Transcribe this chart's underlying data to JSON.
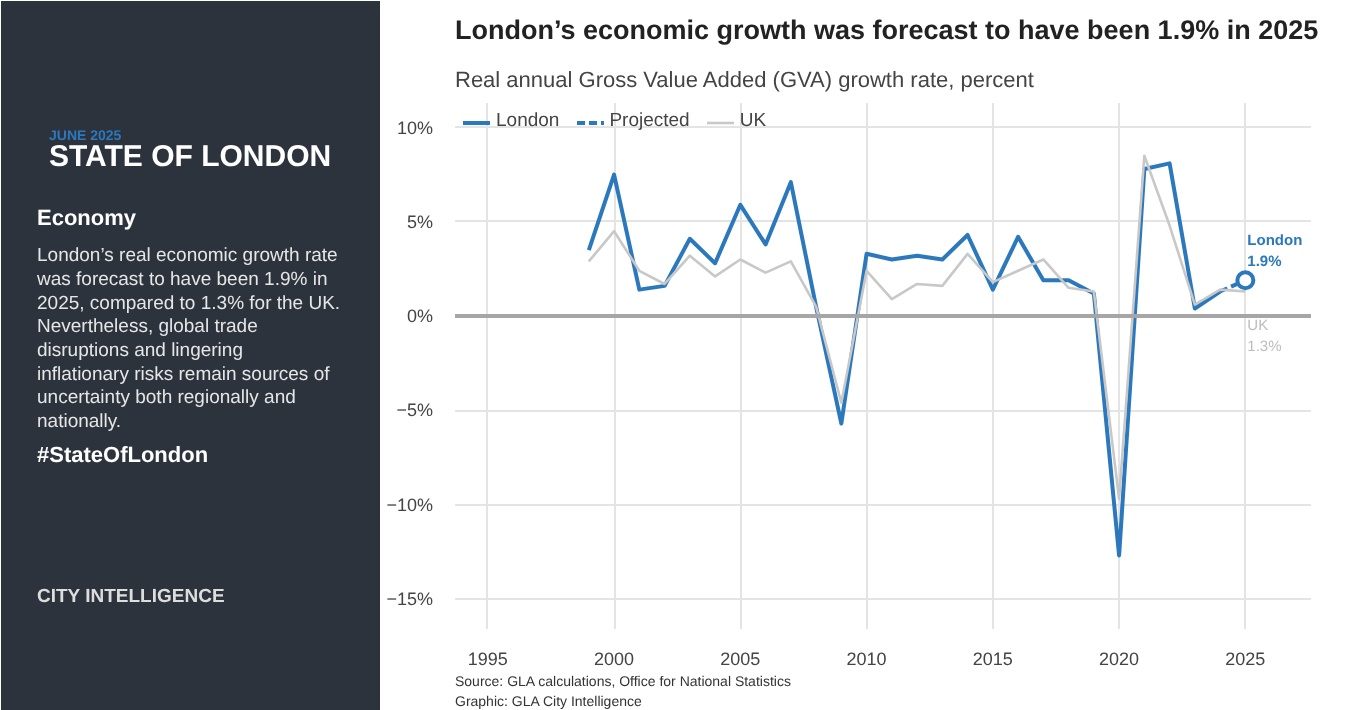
{
  "chart_data": [
    {
      "type": "other",
      "subtitle": "JUNE 2025",
      "title": "STATE OF LONDON",
      "annotations": [
        "Economy",
        "London’s real economic growth rate was forecast to have been 1.9% in 2025, compared to 1.3% for the UK. Nevertheless, global trade disruptions and lingering inflationary risks remain sources of uncertainty both regionally and nationally.",
        "#StateOfLondon",
        "CITY INTELLIGENCE"
      ]
    },
    {
      "type": "line",
      "title": "London’s economic growth was forecast to have been 1.9% in 2025",
      "subtitle": "Real annual Gross Value Added (GVA) growth rate, percent",
      "series": [
        {
          "name": "London",
          "color": "#2b78bd",
          "x": [
            1999,
            2000,
            2001,
            2002,
            2003,
            2004,
            2005,
            2006,
            2007,
            2008,
            2009,
            2010,
            2011,
            2012,
            2013,
            2014,
            2015,
            2016,
            2017,
            2018,
            2019,
            2020,
            2021,
            2022,
            2023,
            2024
          ],
          "values": [
            3.5,
            7.5,
            1.4,
            1.6,
            4.1,
            2.8,
            5.9,
            3.8,
            7.1,
            0.5,
            -5.7,
            3.3,
            3.0,
            3.2,
            3.0,
            4.3,
            1.4,
            4.2,
            1.9,
            1.9,
            1.2,
            -12.7,
            7.8,
            8.1,
            0.4,
            1.3
          ]
        },
        {
          "name": "Projected",
          "color": "#2b78bd",
          "line_style": "dashed",
          "marker": "circle",
          "x": [
            2024,
            2025
          ],
          "values": [
            1.3,
            1.9
          ]
        },
        {
          "name": "UK",
          "color": "#c8c8c8",
          "x": [
            1999,
            2000,
            2001,
            2002,
            2003,
            2004,
            2005,
            2006,
            2007,
            2008,
            2009,
            2010,
            2011,
            2012,
            2013,
            2014,
            2015,
            2016,
            2017,
            2018,
            2019,
            2020,
            2021,
            2022,
            2023,
            2024,
            2025
          ],
          "values": [
            2.9,
            4.5,
            2.4,
            1.7,
            3.2,
            2.1,
            3.0,
            2.3,
            2.9,
            0.5,
            -4.6,
            2.4,
            0.9,
            1.7,
            1.6,
            3.3,
            1.8,
            2.4,
            3.0,
            1.5,
            1.3,
            -9.7,
            8.5,
            4.8,
            0.6,
            1.4,
            1.3
          ]
        }
      ],
      "xlim": [
        1993.7,
        2027.6
      ],
      "xticks": [
        1995,
        2000,
        2005,
        2010,
        2015,
        2020,
        2025
      ],
      "ylim": [
        -16.6,
        11.3
      ],
      "yticks": [
        {
          "value": 10,
          "label": "10%"
        },
        {
          "value": 5,
          "label": "5%"
        },
        {
          "value": 0,
          "label": "0%"
        },
        {
          "value": -5,
          "label": "−5%"
        },
        {
          "value": -10,
          "label": "−10%"
        },
        {
          "value": -15,
          "label": "−15%"
        }
      ],
      "grid": true,
      "legend": "top left",
      "ref_lines": [
        {
          "axis": "y",
          "value": 0,
          "color": "#a6a6a6"
        }
      ],
      "annotations": [
        {
          "text": "London\n1.9%",
          "x": 2025,
          "y": 1.9
        },
        {
          "text": "UK\n1.3%",
          "x": 2025,
          "y": 1.3
        },
        "Source: GLA calculations, Office for National Statistics",
        "Graphic: GLA City Intelligence"
      ]
    }
  ]
}
